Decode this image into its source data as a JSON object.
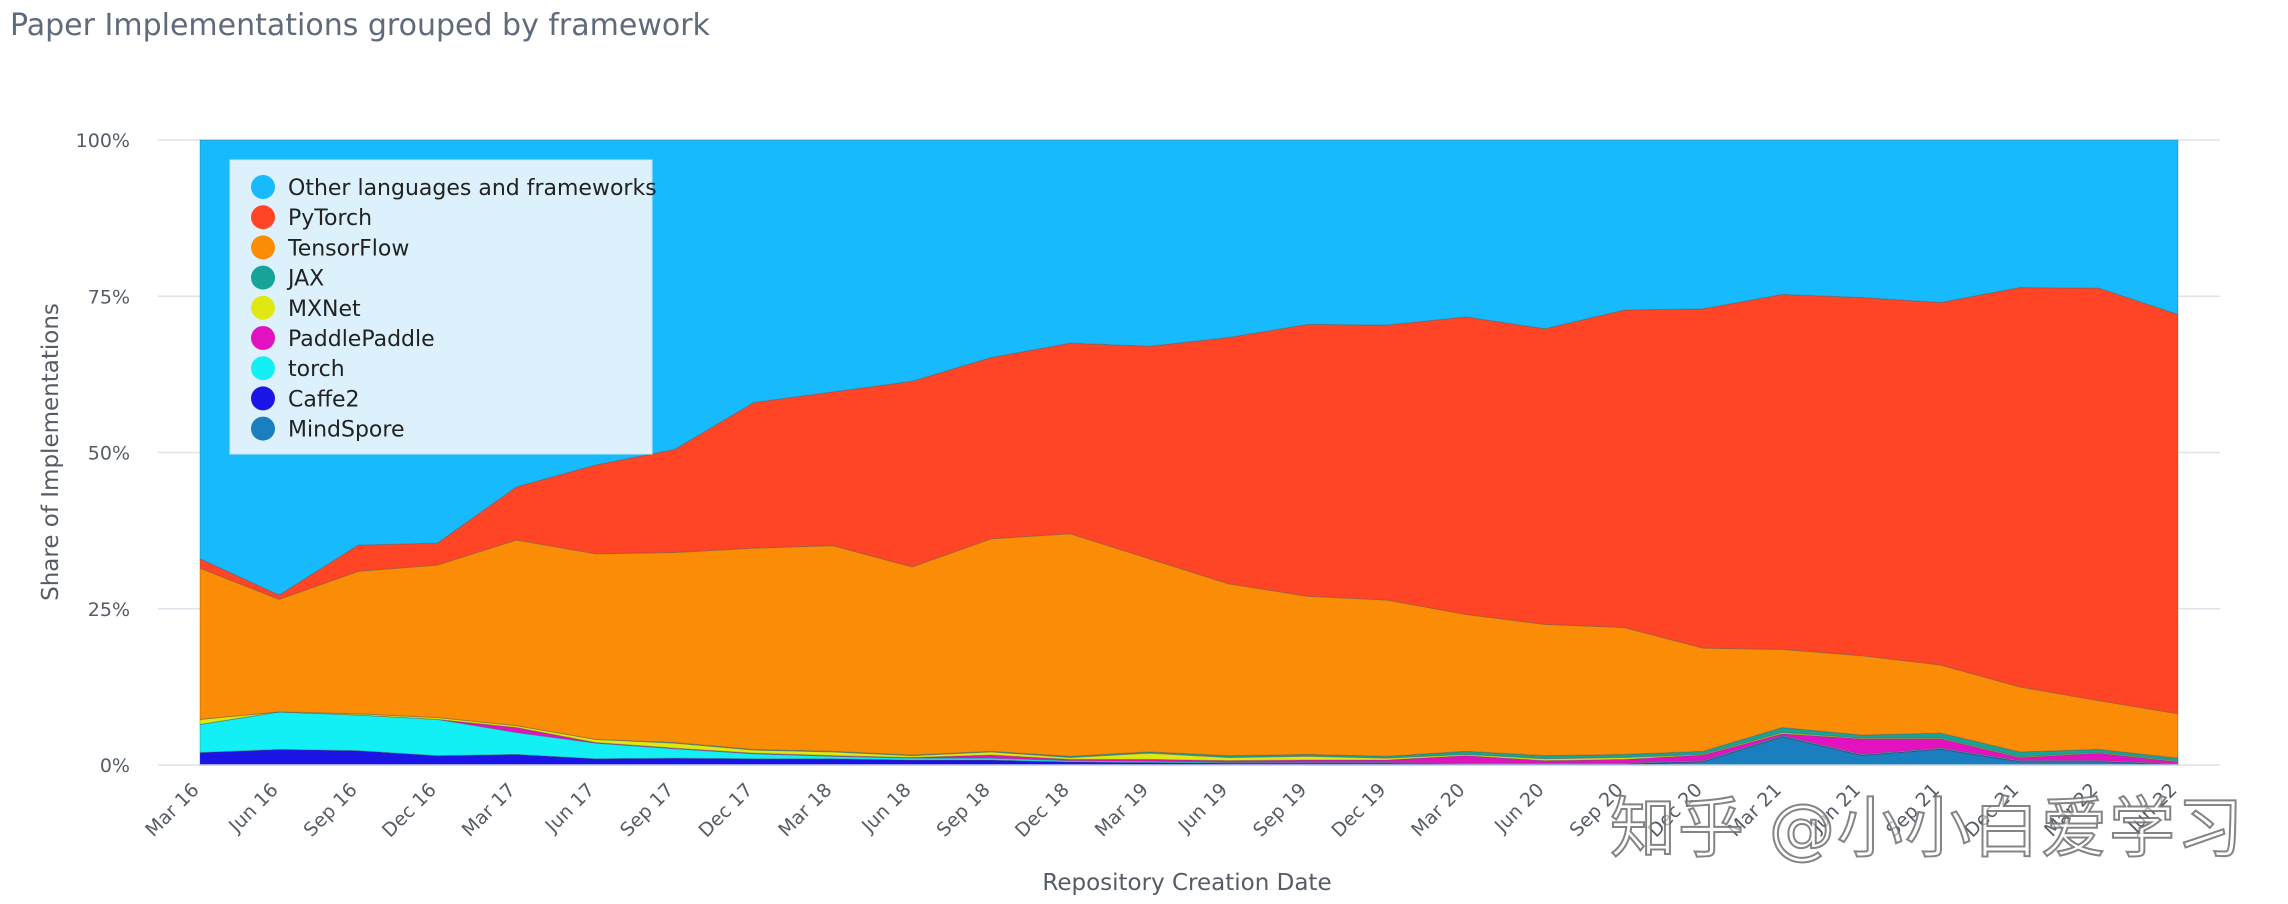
{
  "title": "Paper Implementations grouped by framework",
  "watermark": "知乎 @小小白爱学习",
  "chart_data": {
    "type": "area",
    "stacked": true,
    "normalized": true,
    "xlabel": "Repository Creation Date",
    "ylabel": "Share of Implementations",
    "ylim": [
      0,
      100
    ],
    "y_ticks": [
      "0%",
      "25%",
      "50%",
      "75%",
      "100%"
    ],
    "grid": true,
    "legend_position": "top-left",
    "x_tick_labels": [
      "Mar 16",
      "Jun 16",
      "Sep 16",
      "Dec 16",
      "Mar 17",
      "Jun 17",
      "Sep 17",
      "Dec 17",
      "Mar 18",
      "Jun 18",
      "Sep 18",
      "Dec 18",
      "Mar 19",
      "Jun 19",
      "Sep 19",
      "Dec 19",
      "Mar 20",
      "Jun 20",
      "Sep 20",
      "Dec 20",
      "Mar 21",
      "Jun 21",
      "Sep 21",
      "Dec 21",
      "Mar 22",
      "Jun 22"
    ],
    "series": [
      {
        "name": "MindSpore",
        "color": "#1a7fbf",
        "values": [
          0,
          0,
          0,
          0,
          0,
          0,
          0,
          0,
          0,
          0,
          0,
          0,
          0,
          0,
          0,
          0,
          0,
          0,
          0,
          0.5,
          4.5,
          1.5,
          2.5,
          0.5,
          0.5,
          0
        ]
      },
      {
        "name": "Caffe2",
        "color": "#1a14e6",
        "values": [
          2,
          2.5,
          2.3,
          1.5,
          1.7,
          1.0,
          1.1,
          1.0,
          1.0,
          0.8,
          0.8,
          0.5,
          0.4,
          0.3,
          0.3,
          0.3,
          0.2,
          0.2,
          0.2,
          0.1,
          0.1,
          0.1,
          0.1,
          0.1,
          0.1,
          0.1
        ]
      },
      {
        "name": "torch",
        "color": "#13f0f5",
        "values": [
          4.5,
          6.0,
          5.7,
          5.8,
          3.5,
          2.5,
          1.5,
          0.8,
          0.4,
          0.3,
          0.3,
          0.2,
          0.2,
          0.1,
          0.1,
          0.1,
          0.1,
          0.1,
          0.1,
          0.1,
          0.1,
          0.1,
          0.1,
          0.1,
          0.1,
          0.1
        ]
      },
      {
        "name": "PaddlePaddle",
        "color": "#e312c0",
        "values": [
          0,
          0,
          0,
          0,
          0.8,
          0.1,
          0.1,
          0.1,
          0.1,
          0.1,
          0.5,
          0.2,
          0.3,
          0.3,
          0.4,
          0.4,
          1.2,
          0.4,
          0.6,
          0.9,
          0.3,
          2.5,
          1.5,
          0.5,
          1.2,
          0.3
        ]
      },
      {
        "name": "MXNet",
        "color": "#e0e812",
        "values": [
          0.8,
          0,
          0.2,
          0.3,
          0.3,
          0.5,
          0.8,
          0.5,
          0.6,
          0.3,
          0.5,
          0.3,
          1.0,
          0.5,
          0.6,
          0.3,
          0.2,
          0.3,
          0.3,
          0.1,
          0.2,
          0.1,
          0.1,
          0.1,
          0.1,
          0.1
        ]
      },
      {
        "name": "JAX",
        "color": "#17a398",
        "values": [
          0,
          0,
          0,
          0,
          0,
          0,
          0.1,
          0.1,
          0.1,
          0.1,
          0.1,
          0.2,
          0.2,
          0.3,
          0.3,
          0.3,
          0.5,
          0.5,
          0.5,
          0.5,
          0.8,
          0.5,
          0.8,
          0.8,
          0.5,
          0.5
        ]
      },
      {
        "name": "TensorFlow",
        "color": "#fb8c05",
        "values": [
          24.2,
          18.0,
          22.8,
          24.4,
          29.7,
          29.7,
          30.4,
          32.2,
          32.9,
          30.1,
          34.0,
          35.6,
          30.9,
          27.5,
          25.3,
          25.0,
          21.9,
          21.0,
          20.3,
          16.5,
          12.5,
          12.7,
          10.9,
          10.4,
          7.8,
          7.1
        ]
      },
      {
        "name": "PyTorch",
        "color": "#ff4525",
        "values": [
          1.5,
          0.7,
          4.2,
          3.5,
          8.5,
          14.2,
          16.5,
          23.3,
          24.6,
          29.7,
          29.0,
          30.5,
          34.0,
          39.4,
          43.5,
          44.0,
          47.6,
          47.3,
          50.8,
          54.3,
          56.8,
          57.3,
          58.0,
          63.9,
          66.0,
          63.9
        ]
      },
      {
        "name": "Other languages and frameworks",
        "color": "#17bbfd",
        "values": [
          67,
          72.8,
          64.8,
          64.5,
          55.5,
          52.0,
          49.5,
          42.0,
          40.3,
          38.6,
          34.8,
          32.5,
          33.0,
          31.6,
          29.5,
          29.6,
          28.3,
          30.2,
          27.2,
          27.0,
          24.7,
          25.2,
          26.0,
          23.6,
          23.7,
          27.9
        ]
      }
    ],
    "legend_order": [
      "Other languages and frameworks",
      "PyTorch",
      "TensorFlow",
      "JAX",
      "MXNet",
      "PaddlePaddle",
      "torch",
      "Caffe2",
      "MindSpore"
    ]
  }
}
